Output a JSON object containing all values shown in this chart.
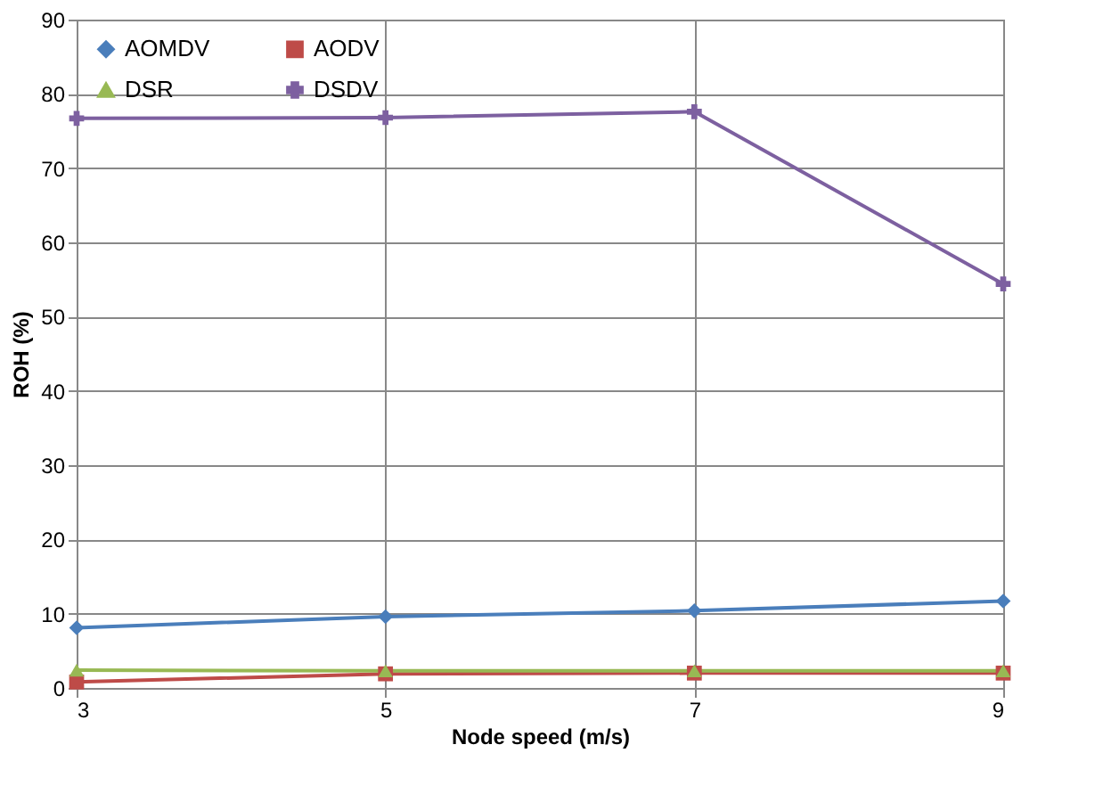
{
  "chart_data": {
    "type": "line",
    "xlabel": "Node speed (m/s)",
    "ylabel": "ROH (%)",
    "x": [
      3,
      5,
      7,
      9
    ],
    "xlim": [
      3,
      9
    ],
    "xticks": [
      3,
      5,
      7,
      9
    ],
    "ylim": [
      0,
      90
    ],
    "yticks": [
      0,
      10,
      20,
      30,
      40,
      50,
      60,
      70,
      80,
      90
    ],
    "grid": true,
    "legend": "top left",
    "series": [
      {
        "name": "AOMDV",
        "color": "#4a7ebb",
        "marker": "diamond",
        "values": [
          8.1,
          9.6,
          10.4,
          11.7
        ]
      },
      {
        "name": "AODV",
        "color": "#be4b48",
        "marker": "square",
        "values": [
          0.8,
          1.9,
          2.0,
          2.0
        ]
      },
      {
        "name": "DSR",
        "color": "#98b954",
        "marker": "triangle",
        "values": [
          2.4,
          2.3,
          2.3,
          2.3
        ]
      },
      {
        "name": "DSDV",
        "color": "#7d60a0",
        "marker": "cross",
        "values": [
          76.7,
          76.8,
          77.6,
          54.4
        ]
      }
    ]
  }
}
